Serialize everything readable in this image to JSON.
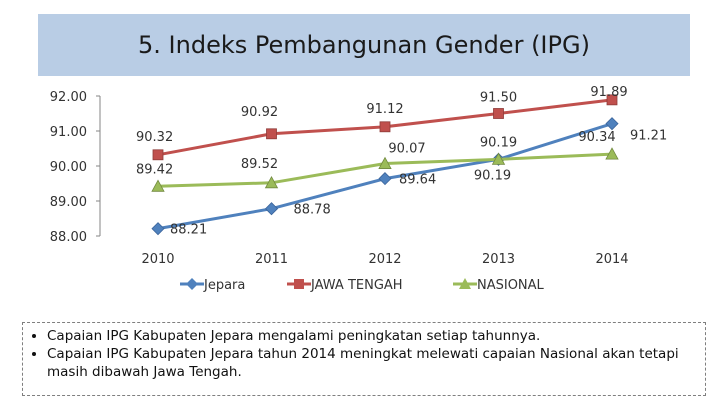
{
  "title": "5. Indeks Pembangunan Gender (IPG)",
  "chart_data": {
    "type": "line",
    "categories": [
      "2010",
      "2011",
      "2012",
      "2013",
      "2014"
    ],
    "ylim": [
      88.0,
      92.0
    ],
    "yticks": [
      "88.00",
      "89.00",
      "90.00",
      "91.00",
      "92.00"
    ],
    "grid": false,
    "legend_position": "bottom",
    "series": [
      {
        "name": "Jepara",
        "values": [
          88.21,
          88.78,
          89.64,
          90.19,
          91.21
        ],
        "labels": [
          "88.21",
          "88.78",
          "89.64",
          "90.19",
          "91.21"
        ],
        "color": "#4f81bd",
        "marker": "diamond"
      },
      {
        "name": "JAWA TENGAH",
        "values": [
          90.32,
          90.92,
          91.12,
          91.5,
          91.89
        ],
        "labels": [
          "90.32",
          "90.92",
          "91.12",
          "91.50",
          "91.89"
        ],
        "color": "#c0504d",
        "marker": "square"
      },
      {
        "name": "NASIONAL",
        "values": [
          89.42,
          89.52,
          90.07,
          90.19,
          90.34
        ],
        "labels": [
          "89.42",
          "89.52",
          "90.07",
          "90.19",
          "90.34"
        ],
        "color": "#9bbb59",
        "marker": "triangle"
      }
    ]
  },
  "notes": [
    "Capaian IPG Kabupaten Jepara mengalami peningkatan setiap tahunnya.",
    "Capaian IPG Kabupaten Jepara tahun 2014 meningkat melewati capaian Nasional akan tetapi masih dibawah Jawa Tengah."
  ]
}
